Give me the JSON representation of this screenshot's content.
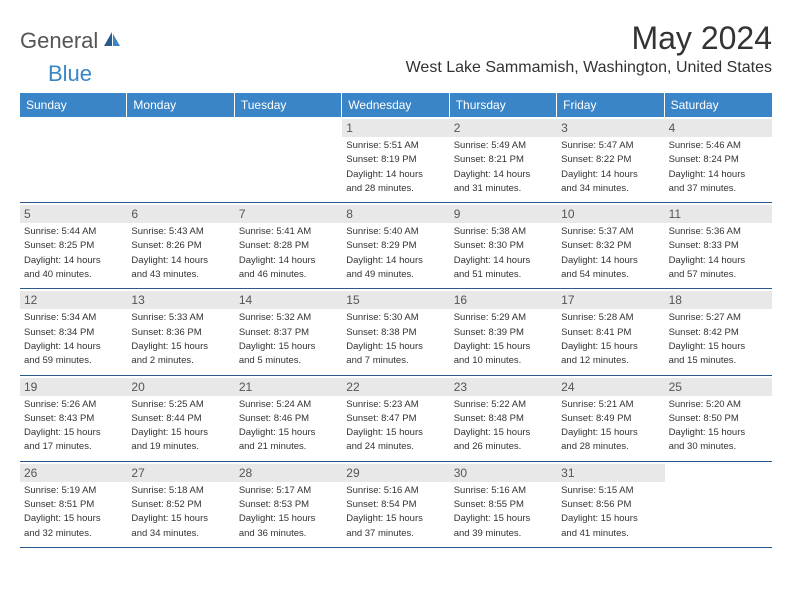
{
  "logo": {
    "text_general": "General",
    "text_blue": "Blue"
  },
  "title": "May 2024",
  "location": "West Lake Sammamish, Washington, United States",
  "day_labels": [
    "Sunday",
    "Monday",
    "Tuesday",
    "Wednesday",
    "Thursday",
    "Friday",
    "Saturday"
  ],
  "colors": {
    "header_bg": "#3a85c7",
    "day_number_bg": "#e8e8e8",
    "border": "#2b5a8a"
  },
  "weeks": [
    {
      "days": [
        null,
        null,
        null,
        {
          "num": "1",
          "sunrise": "Sunrise: 5:51 AM",
          "sunset": "Sunset: 8:19 PM",
          "daylight1": "Daylight: 14 hours",
          "daylight2": "and 28 minutes."
        },
        {
          "num": "2",
          "sunrise": "Sunrise: 5:49 AM",
          "sunset": "Sunset: 8:21 PM",
          "daylight1": "Daylight: 14 hours",
          "daylight2": "and 31 minutes."
        },
        {
          "num": "3",
          "sunrise": "Sunrise: 5:47 AM",
          "sunset": "Sunset: 8:22 PM",
          "daylight1": "Daylight: 14 hours",
          "daylight2": "and 34 minutes."
        },
        {
          "num": "4",
          "sunrise": "Sunrise: 5:46 AM",
          "sunset": "Sunset: 8:24 PM",
          "daylight1": "Daylight: 14 hours",
          "daylight2": "and 37 minutes."
        }
      ]
    },
    {
      "days": [
        {
          "num": "5",
          "sunrise": "Sunrise: 5:44 AM",
          "sunset": "Sunset: 8:25 PM",
          "daylight1": "Daylight: 14 hours",
          "daylight2": "and 40 minutes."
        },
        {
          "num": "6",
          "sunrise": "Sunrise: 5:43 AM",
          "sunset": "Sunset: 8:26 PM",
          "daylight1": "Daylight: 14 hours",
          "daylight2": "and 43 minutes."
        },
        {
          "num": "7",
          "sunrise": "Sunrise: 5:41 AM",
          "sunset": "Sunset: 8:28 PM",
          "daylight1": "Daylight: 14 hours",
          "daylight2": "and 46 minutes."
        },
        {
          "num": "8",
          "sunrise": "Sunrise: 5:40 AM",
          "sunset": "Sunset: 8:29 PM",
          "daylight1": "Daylight: 14 hours",
          "daylight2": "and 49 minutes."
        },
        {
          "num": "9",
          "sunrise": "Sunrise: 5:38 AM",
          "sunset": "Sunset: 8:30 PM",
          "daylight1": "Daylight: 14 hours",
          "daylight2": "and 51 minutes."
        },
        {
          "num": "10",
          "sunrise": "Sunrise: 5:37 AM",
          "sunset": "Sunset: 8:32 PM",
          "daylight1": "Daylight: 14 hours",
          "daylight2": "and 54 minutes."
        },
        {
          "num": "11",
          "sunrise": "Sunrise: 5:36 AM",
          "sunset": "Sunset: 8:33 PM",
          "daylight1": "Daylight: 14 hours",
          "daylight2": "and 57 minutes."
        }
      ]
    },
    {
      "days": [
        {
          "num": "12",
          "sunrise": "Sunrise: 5:34 AM",
          "sunset": "Sunset: 8:34 PM",
          "daylight1": "Daylight: 14 hours",
          "daylight2": "and 59 minutes."
        },
        {
          "num": "13",
          "sunrise": "Sunrise: 5:33 AM",
          "sunset": "Sunset: 8:36 PM",
          "daylight1": "Daylight: 15 hours",
          "daylight2": "and 2 minutes."
        },
        {
          "num": "14",
          "sunrise": "Sunrise: 5:32 AM",
          "sunset": "Sunset: 8:37 PM",
          "daylight1": "Daylight: 15 hours",
          "daylight2": "and 5 minutes."
        },
        {
          "num": "15",
          "sunrise": "Sunrise: 5:30 AM",
          "sunset": "Sunset: 8:38 PM",
          "daylight1": "Daylight: 15 hours",
          "daylight2": "and 7 minutes."
        },
        {
          "num": "16",
          "sunrise": "Sunrise: 5:29 AM",
          "sunset": "Sunset: 8:39 PM",
          "daylight1": "Daylight: 15 hours",
          "daylight2": "and 10 minutes."
        },
        {
          "num": "17",
          "sunrise": "Sunrise: 5:28 AM",
          "sunset": "Sunset: 8:41 PM",
          "daylight1": "Daylight: 15 hours",
          "daylight2": "and 12 minutes."
        },
        {
          "num": "18",
          "sunrise": "Sunrise: 5:27 AM",
          "sunset": "Sunset: 8:42 PM",
          "daylight1": "Daylight: 15 hours",
          "daylight2": "and 15 minutes."
        }
      ]
    },
    {
      "days": [
        {
          "num": "19",
          "sunrise": "Sunrise: 5:26 AM",
          "sunset": "Sunset: 8:43 PM",
          "daylight1": "Daylight: 15 hours",
          "daylight2": "and 17 minutes."
        },
        {
          "num": "20",
          "sunrise": "Sunrise: 5:25 AM",
          "sunset": "Sunset: 8:44 PM",
          "daylight1": "Daylight: 15 hours",
          "daylight2": "and 19 minutes."
        },
        {
          "num": "21",
          "sunrise": "Sunrise: 5:24 AM",
          "sunset": "Sunset: 8:46 PM",
          "daylight1": "Daylight: 15 hours",
          "daylight2": "and 21 minutes."
        },
        {
          "num": "22",
          "sunrise": "Sunrise: 5:23 AM",
          "sunset": "Sunset: 8:47 PM",
          "daylight1": "Daylight: 15 hours",
          "daylight2": "and 24 minutes."
        },
        {
          "num": "23",
          "sunrise": "Sunrise: 5:22 AM",
          "sunset": "Sunset: 8:48 PM",
          "daylight1": "Daylight: 15 hours",
          "daylight2": "and 26 minutes."
        },
        {
          "num": "24",
          "sunrise": "Sunrise: 5:21 AM",
          "sunset": "Sunset: 8:49 PM",
          "daylight1": "Daylight: 15 hours",
          "daylight2": "and 28 minutes."
        },
        {
          "num": "25",
          "sunrise": "Sunrise: 5:20 AM",
          "sunset": "Sunset: 8:50 PM",
          "daylight1": "Daylight: 15 hours",
          "daylight2": "and 30 minutes."
        }
      ]
    },
    {
      "days": [
        {
          "num": "26",
          "sunrise": "Sunrise: 5:19 AM",
          "sunset": "Sunset: 8:51 PM",
          "daylight1": "Daylight: 15 hours",
          "daylight2": "and 32 minutes."
        },
        {
          "num": "27",
          "sunrise": "Sunrise: 5:18 AM",
          "sunset": "Sunset: 8:52 PM",
          "daylight1": "Daylight: 15 hours",
          "daylight2": "and 34 minutes."
        },
        {
          "num": "28",
          "sunrise": "Sunrise: 5:17 AM",
          "sunset": "Sunset: 8:53 PM",
          "daylight1": "Daylight: 15 hours",
          "daylight2": "and 36 minutes."
        },
        {
          "num": "29",
          "sunrise": "Sunrise: 5:16 AM",
          "sunset": "Sunset: 8:54 PM",
          "daylight1": "Daylight: 15 hours",
          "daylight2": "and 37 minutes."
        },
        {
          "num": "30",
          "sunrise": "Sunrise: 5:16 AM",
          "sunset": "Sunset: 8:55 PM",
          "daylight1": "Daylight: 15 hours",
          "daylight2": "and 39 minutes."
        },
        {
          "num": "31",
          "sunrise": "Sunrise: 5:15 AM",
          "sunset": "Sunset: 8:56 PM",
          "daylight1": "Daylight: 15 hours",
          "daylight2": "and 41 minutes."
        },
        null
      ]
    }
  ]
}
